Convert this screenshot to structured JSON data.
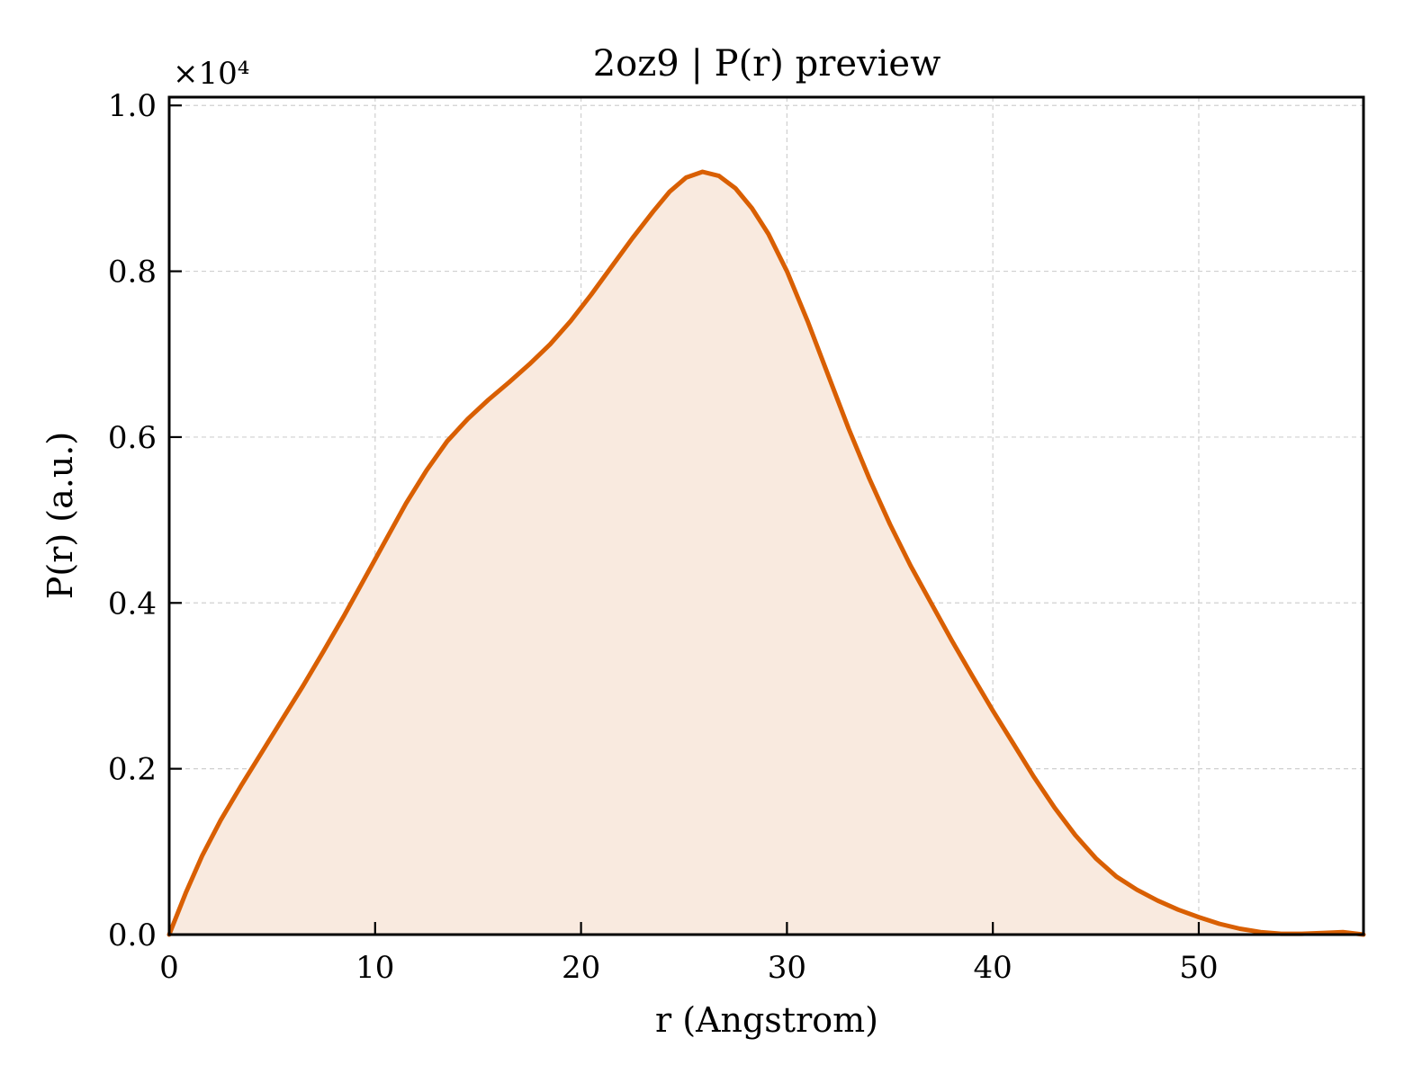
{
  "chart_data": {
    "type": "area",
    "title": "2oz9 | P(r) preview",
    "xlabel": "r (Angstrom)",
    "ylabel": "P(r) (a.u.)",
    "y_scale_factor_label": "×10⁴",
    "y_scale_factor": 10000,
    "xlim": [
      0,
      58
    ],
    "ylim": [
      0,
      1.01
    ],
    "xticks": [
      0,
      10,
      20,
      30,
      40,
      50
    ],
    "xtick_labels": [
      "0",
      "10",
      "20",
      "30",
      "40",
      "50"
    ],
    "yticks": [
      0.0,
      0.2,
      0.4,
      0.6,
      0.8,
      1.0
    ],
    "ytick_labels": [
      "0.0",
      "0.2",
      "0.4",
      "0.6",
      "0.8",
      "1.0"
    ],
    "grid": true,
    "line_color": "#d95f02",
    "fill_color": "#f9eadf",
    "series": [
      {
        "x": [
          0,
          0.8,
          1.6,
          2.5,
          3.5,
          4.5,
          5.5,
          6.5,
          7.5,
          8.5,
          9.5,
          10.5,
          11.5,
          12.5,
          13.5,
          14.5,
          15.5,
          16.5,
          17.5,
          18.5,
          19.5,
          20.5,
          21.5,
          22.5,
          23.5,
          24.3,
          25.1,
          25.9,
          26.7,
          27.5,
          28.3,
          29.1,
          30.0,
          31.0,
          32.0,
          33.0,
          34.0,
          35.0,
          36.0,
          37.0,
          38.0,
          39.0,
          40.0,
          41.0,
          42.0,
          43.0,
          44.0,
          45.0,
          46.0,
          47.0,
          48.0,
          49.0,
          50.0,
          51.0,
          52.0,
          53.0,
          54.0,
          55.0,
          56.0,
          57.0,
          58.0
        ],
        "y": [
          0.0,
          0.05,
          0.095,
          0.138,
          0.18,
          0.22,
          0.26,
          0.3,
          0.342,
          0.385,
          0.43,
          0.475,
          0.52,
          0.56,
          0.595,
          0.622,
          0.645,
          0.666,
          0.688,
          0.712,
          0.74,
          0.772,
          0.806,
          0.84,
          0.872,
          0.896,
          0.913,
          0.92,
          0.915,
          0.9,
          0.876,
          0.845,
          0.8,
          0.74,
          0.675,
          0.61,
          0.55,
          0.495,
          0.445,
          0.4,
          0.355,
          0.312,
          0.27,
          0.23,
          0.19,
          0.153,
          0.12,
          0.092,
          0.07,
          0.054,
          0.041,
          0.03,
          0.021,
          0.013,
          0.007,
          0.003,
          0.001,
          0.001,
          0.002,
          0.003,
          0.0
        ]
      }
    ]
  }
}
